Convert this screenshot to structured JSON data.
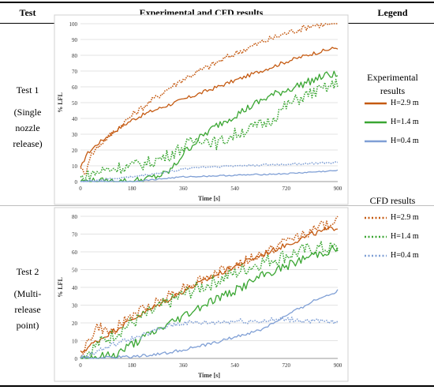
{
  "header": {
    "col_test": "Test",
    "col_results": "Experimental and CFD results",
    "col_legend": "Legend"
  },
  "tests": [
    {
      "name": "Test 1",
      "desc": [
        "(Single",
        "nozzle",
        "release)"
      ]
    },
    {
      "name": "Test 2",
      "desc": [
        "(Multi-",
        "release",
        "point)"
      ]
    }
  ],
  "legend": {
    "experimental_title": [
      "Experimental",
      "results"
    ],
    "cfd_title": "CFD results",
    "experimental": [
      {
        "label": "H=2.9 m",
        "color": "#c55a11",
        "style": "solid"
      },
      {
        "label": "H=1.4 m",
        "color": "#3aa632",
        "style": "solid"
      },
      {
        "label": "H=0.4 m",
        "color": "#7f9fd5",
        "style": "solid"
      }
    ],
    "cfd": [
      {
        "label": "H=2.9 m",
        "color": "#c55a11",
        "style": "dotted"
      },
      {
        "label": "H=1.4 m",
        "color": "#3aa632",
        "style": "dotted"
      },
      {
        "label": "H=0.4 m",
        "color": "#7f9fd5",
        "style": "dotted"
      }
    ]
  },
  "chart_data": [
    {
      "type": "line",
      "xlabel": "Time [s]",
      "ylabel": "% LFL",
      "xlim": [
        0,
        900
      ],
      "ylim": [
        0,
        100
      ],
      "xticks": [
        0,
        180,
        360,
        540,
        720,
        900
      ],
      "yticks": [
        0,
        10,
        20,
        30,
        40,
        50,
        60,
        70,
        80,
        90,
        100
      ],
      "grid": true,
      "series": [
        {
          "color": "#c55a11",
          "style": "solid",
          "noise": 1.2,
          "x": [
            0,
            20,
            60,
            120,
            180,
            240,
            300,
            360,
            450,
            540,
            630,
            720,
            810,
            900
          ],
          "y": [
            8,
            17,
            24,
            32,
            39,
            44,
            48,
            52,
            58,
            64,
            70,
            76,
            81,
            85
          ]
        },
        {
          "color": "#c55a11",
          "style": "dotted",
          "noise": 2.0,
          "x": [
            0,
            15,
            30,
            60,
            120,
            180,
            240,
            300,
            360,
            450,
            540,
            630,
            720,
            810,
            900
          ],
          "y": [
            10,
            3,
            15,
            22,
            32,
            42,
            50,
            58,
            65,
            73,
            81,
            88,
            94,
            99,
            100
          ]
        },
        {
          "color": "#3aa632",
          "style": "solid",
          "noise": 2.5,
          "x": [
            0,
            100,
            180,
            240,
            300,
            330,
            360,
            420,
            480,
            540,
            600,
            660,
            720,
            780,
            840,
            870,
            900
          ],
          "y": [
            0,
            0,
            0,
            2,
            5,
            10,
            18,
            28,
            36,
            42,
            48,
            54,
            58,
            62,
            66,
            68,
            67
          ]
        },
        {
          "color": "#3aa632",
          "style": "dotted",
          "noise": 4.0,
          "x": [
            0,
            40,
            100,
            180,
            240,
            300,
            360,
            420,
            480,
            540,
            600,
            660,
            720,
            780,
            840,
            900
          ],
          "y": [
            2,
            5,
            8,
            10,
            12,
            16,
            22,
            28,
            24,
            30,
            34,
            38,
            48,
            54,
            58,
            62
          ]
        },
        {
          "color": "#7f9fd5",
          "style": "solid",
          "noise": 0.4,
          "x": [
            0,
            180,
            300,
            360,
            540,
            720,
            900
          ],
          "y": [
            0,
            0,
            2,
            3,
            4,
            5,
            7
          ]
        },
        {
          "color": "#7f9fd5",
          "style": "dotted",
          "noise": 0.6,
          "x": [
            0,
            60,
            180,
            300,
            400,
            540,
            720,
            900
          ],
          "y": [
            0,
            1,
            3,
            6,
            9,
            10,
            11,
            12
          ]
        }
      ]
    },
    {
      "type": "line",
      "xlabel": "Time [s]",
      "ylabel": "% LFL",
      "xlim": [
        0,
        900
      ],
      "ylim": [
        0,
        80
      ],
      "xticks": [
        0,
        180,
        360,
        540,
        720,
        900
      ],
      "yticks": [
        0,
        10,
        20,
        30,
        40,
        50,
        60,
        70,
        80
      ],
      "grid": true,
      "series": [
        {
          "color": "#c55a11",
          "style": "solid",
          "noise": 1.5,
          "x": [
            0,
            40,
            100,
            180,
            270,
            360,
            450,
            540,
            630,
            720,
            810,
            900
          ],
          "y": [
            3,
            8,
            14,
            22,
            30,
            38,
            45,
            52,
            58,
            64,
            70,
            74
          ]
        },
        {
          "color": "#c55a11",
          "style": "dotted",
          "noise": 3.0,
          "x": [
            0,
            60,
            100,
            180,
            270,
            360,
            450,
            540,
            630,
            720,
            810,
            900
          ],
          "y": [
            2,
            18,
            14,
            24,
            32,
            40,
            46,
            52,
            58,
            66,
            72,
            78
          ]
        },
        {
          "color": "#3aa632",
          "style": "solid",
          "noise": 2.5,
          "x": [
            0,
            120,
            180,
            270,
            360,
            450,
            540,
            630,
            720,
            810,
            900
          ],
          "y": [
            0,
            2,
            8,
            16,
            24,
            32,
            38,
            46,
            52,
            58,
            62
          ]
        },
        {
          "color": "#3aa632",
          "style": "dotted",
          "noise": 4.0,
          "x": [
            0,
            60,
            120,
            180,
            270,
            360,
            450,
            540,
            630,
            720,
            810,
            900
          ],
          "y": [
            0,
            8,
            14,
            20,
            28,
            36,
            42,
            48,
            54,
            58,
            62,
            62
          ]
        },
        {
          "color": "#7f9fd5",
          "style": "solid",
          "noise": 0.8,
          "x": [
            0,
            180,
            300,
            360,
            450,
            540,
            630,
            720,
            810,
            900
          ],
          "y": [
            0,
            1,
            3,
            5,
            8,
            12,
            16,
            24,
            32,
            38
          ]
        },
        {
          "color": "#7f9fd5",
          "style": "dotted",
          "noise": 1.5,
          "x": [
            0,
            120,
            240,
            300,
            360,
            450,
            540,
            630,
            720,
            810,
            900
          ],
          "y": [
            0,
            8,
            14,
            18,
            20,
            20,
            21,
            21,
            22,
            21,
            20
          ]
        }
      ]
    }
  ]
}
